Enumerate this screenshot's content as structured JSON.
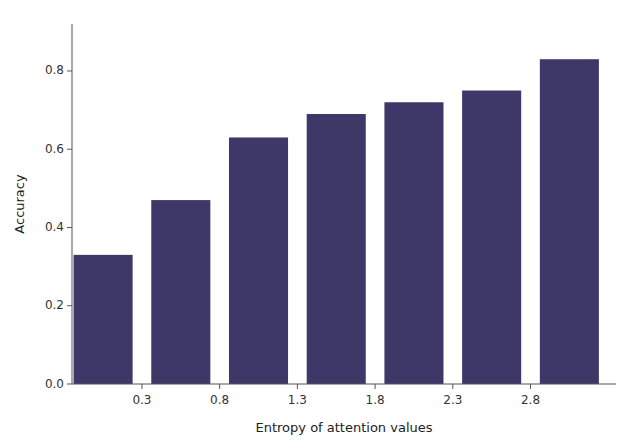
{
  "chart_data": {
    "type": "bar",
    "x": [
      0.05,
      0.55,
      1.05,
      1.55,
      2.05,
      2.55,
      3.05
    ],
    "values": [
      0.33,
      0.47,
      0.63,
      0.69,
      0.72,
      0.75,
      0.83
    ],
    "color": "#3d3868",
    "xlabel": "Entropy of attention values",
    "ylabel": "Accuracy",
    "ylim": [
      0.0,
      0.92
    ],
    "yticks": [
      {
        "value": 0,
        "label": "0.0"
      },
      0.2,
      0.4,
      0.6,
      0.8
    ],
    "xlim": [
      -0.15,
      3.35
    ],
    "xticks": [
      0.3,
      0.8,
      1.3,
      1.8,
      2.3,
      2.8
    ],
    "grid": false
  }
}
